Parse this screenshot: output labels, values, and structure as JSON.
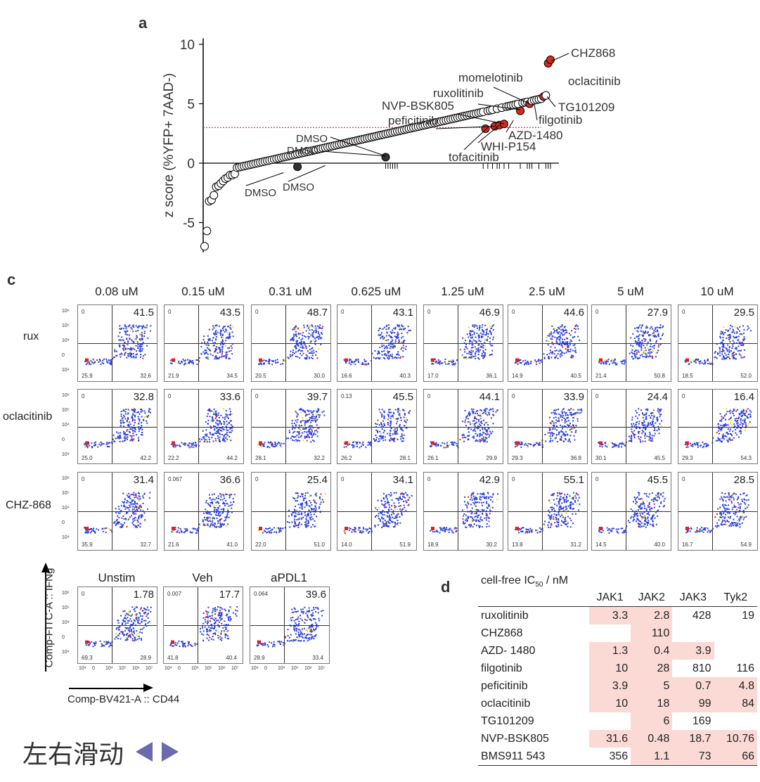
{
  "panel_a": {
    "letter": "a",
    "chart_data": {
      "type": "scatter",
      "title": "",
      "xlabel": "",
      "ylabel": "z score (%YFP+ 7AAD-)",
      "ylim": [
        -7.5,
        10.5
      ],
      "yticks": [
        "10",
        "5",
        "0",
        "-5"
      ],
      "threshold": 3,
      "n_points": 150,
      "labels": [
        "CHZ868",
        "oclacitinib",
        "momelotinib",
        "ruxolitinib",
        "TG101209",
        "NVP-BSK805",
        "filgotinib",
        "peficitinib",
        "AZD-1480",
        "WHI-P154",
        "tofacitinib",
        "DMSO",
        "DMSO",
        "DMSO",
        "DMSO"
      ],
      "highlighted_series": {
        "name": "JAK inhibitors",
        "color": "#d62b1f",
        "values": [
          8.7,
          8.4,
          5.6,
          5.0,
          4.4,
          3.3,
          3.2,
          3.1,
          2.9
        ]
      }
    }
  },
  "panel_c": {
    "letter": "c",
    "concentrations": [
      "0.08 uM",
      "0.15 uM",
      "0.31 uM",
      "0.625 uM",
      "1.25 uM",
      "2.5 uM",
      "5 uM",
      "10 uM"
    ],
    "rows": [
      {
        "label": "rux",
        "q2": [
          "41.5",
          "43.5",
          "48.7",
          "43.1",
          "46.9",
          "44.6",
          "27.9",
          "29.5"
        ],
        "q1": [
          "0",
          "0",
          "0",
          "0",
          "0",
          "0",
          "0",
          "0"
        ],
        "q4": [
          "32.6",
          "34.5",
          "30.0",
          "40.3",
          "36.1",
          "40.5",
          "50.8",
          "52.0"
        ],
        "q3": [
          "25.9",
          "21.9",
          "20.5",
          "16.6",
          "17.0",
          "14.9",
          "21.4",
          "18.5"
        ]
      },
      {
        "label": "oclacitinib",
        "q2": [
          "32.8",
          "33.6",
          "39.7",
          "45.5",
          "44.1",
          "33.9",
          "24.4",
          "16.4"
        ],
        "q1": [
          "0",
          "0",
          "0",
          "0.13",
          "0",
          "0",
          "0",
          "0"
        ],
        "q4": [
          "42.2",
          "44.2",
          "32.2",
          "28.1",
          "29.9",
          "36.8",
          "45.5",
          "54.3"
        ],
        "q3": [
          "25.0",
          "22.2",
          "28.1",
          "26.2",
          "26.1",
          "29.3",
          "30.1",
          "29.3"
        ]
      },
      {
        "label": "CHZ-868",
        "q2": [
          "31.4",
          "36.6",
          "25.4",
          "34.1",
          "42.9",
          "55.1",
          "45.5",
          "28.5"
        ],
        "q1": [
          "0",
          "0.067",
          "0",
          "0",
          "0",
          "0",
          "0",
          "0"
        ],
        "q4": [
          "32.7",
          "41.0",
          "51.0",
          "51.9",
          "30.2",
          "31.2",
          "40.0",
          "54.9"
        ],
        "q3": [
          "35.9",
          "21.6",
          "22.0",
          "14.0",
          "18.9",
          "13.8",
          "14.5",
          "16.7"
        ]
      }
    ],
    "controls": [
      {
        "label": "Unstim",
        "q2": "1.78",
        "q1": "0",
        "q4": "28.9",
        "q3": "69.3"
      },
      {
        "label": "Veh",
        "q2": "17.7",
        "q1": "0.007",
        "q4": "40.4",
        "q3": "41.8"
      },
      {
        "label": "aPDL1",
        "q2": "39.6",
        "q1": "0.064",
        "q4": "33.4",
        "q3": "28.9"
      }
    ],
    "y_axis_label": "Comp-FITC-A :: IFNg",
    "x_axis_label": "Comp-BV421-A :: CD44",
    "y_ticks": [
      "10⁶",
      "10⁵",
      "10⁴",
      "0",
      "10⁴"
    ],
    "x_ticks": [
      "10⁴",
      "0",
      "10⁴",
      "10⁵",
      "10⁶",
      "10⁷"
    ]
  },
  "panel_d": {
    "letter": "d",
    "title_main": "cell-free IC",
    "title_sub": "50",
    "title_suffix": " / nM",
    "headers": [
      "",
      "JAK1",
      "JAK2",
      "JAK3",
      "Tyk2"
    ],
    "rows": [
      {
        "name": "ruxolitinib",
        "values": [
          "3.3",
          "2.8",
          "428",
          "19"
        ],
        "hl": [
          true,
          true,
          false,
          false
        ]
      },
      {
        "name": "CHZ868",
        "values": [
          "",
          "110",
          "",
          ""
        ],
        "hl": [
          false,
          true,
          false,
          false
        ]
      },
      {
        "name": "AZD- 1480",
        "values": [
          "1.3",
          "0.4",
          "3.9",
          ""
        ],
        "hl": [
          true,
          true,
          true,
          false
        ]
      },
      {
        "name": "filgotinib",
        "values": [
          "10",
          "28",
          "810",
          "116"
        ],
        "hl": [
          true,
          true,
          false,
          false
        ]
      },
      {
        "name": "peficitinib",
        "values": [
          "3.9",
          "5",
          "0.7",
          "4.8"
        ],
        "hl": [
          true,
          true,
          true,
          true
        ]
      },
      {
        "name": "oclacitinib",
        "values": [
          "10",
          "18",
          "99",
          "84"
        ],
        "hl": [
          true,
          true,
          true,
          true
        ]
      },
      {
        "name": "TG101209",
        "values": [
          "",
          "6",
          "169",
          ""
        ],
        "hl": [
          false,
          true,
          false,
          false
        ]
      },
      {
        "name": "NVP-BSK805",
        "values": [
          "31.6",
          "0.48",
          "18.7",
          "10.76"
        ],
        "hl": [
          true,
          true,
          true,
          true
        ]
      },
      {
        "name": "BMS911 543",
        "values": [
          "356",
          "1.1",
          "73",
          "66"
        ],
        "hl": [
          false,
          true,
          true,
          true
        ]
      }
    ]
  },
  "swipe_hint": {
    "text": "左右滑动",
    "color": "#6a6aad"
  }
}
